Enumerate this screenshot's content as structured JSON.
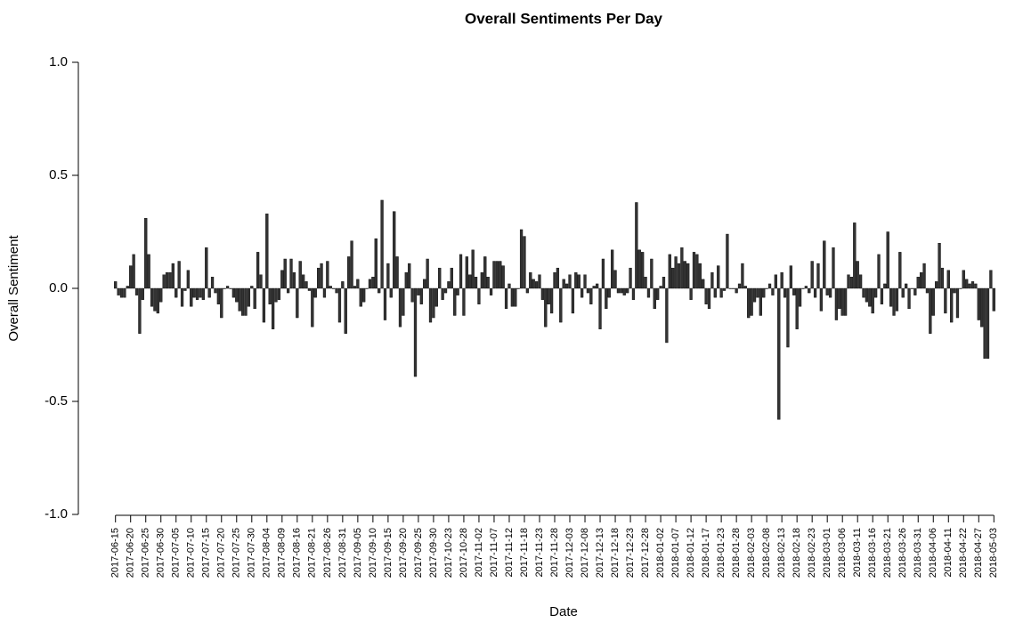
{
  "chart_data": {
    "type": "bar",
    "title": "Overall Sentiments Per Day",
    "x_label": "Date",
    "y_label": "Overall Sentiment",
    "color": "#333333",
    "ylim": [
      -1,
      1
    ],
    "yticks": [
      {
        "value": -1,
        "label": "-1.0"
      },
      -0.5,
      {
        "value": 0,
        "label": "0.0"
      },
      0.5,
      {
        "value": 1,
        "label": "1.0"
      }
    ],
    "categories": [
      "2017-06-15",
      null,
      null,
      null,
      null,
      "2017-06-20",
      null,
      null,
      null,
      null,
      "2017-06-25",
      null,
      null,
      null,
      null,
      "2017-06-30",
      null,
      null,
      null,
      null,
      "2017-07-05",
      null,
      null,
      null,
      null,
      "2017-07-10",
      null,
      null,
      null,
      null,
      "2017-07-15",
      null,
      null,
      null,
      null,
      "2017-07-20",
      null,
      null,
      null,
      null,
      "2017-07-25",
      null,
      null,
      null,
      null,
      "2017-07-30",
      null,
      null,
      null,
      null,
      "2017-08-04",
      null,
      null,
      null,
      null,
      "2017-08-09",
      null,
      null,
      null,
      null,
      "2017-08-16",
      null,
      null,
      null,
      null,
      "2017-08-21",
      null,
      null,
      null,
      null,
      "2017-08-26",
      null,
      null,
      null,
      null,
      "2017-08-31",
      null,
      null,
      null,
      null,
      "2017-09-05",
      null,
      null,
      null,
      null,
      "2017-09-10",
      null,
      null,
      null,
      null,
      "2017-09-15",
      null,
      null,
      null,
      null,
      "2017-09-20",
      null,
      null,
      null,
      null,
      "2017-09-25",
      null,
      null,
      null,
      null,
      "2017-09-30",
      null,
      null,
      null,
      null,
      "2017-10-23",
      null,
      null,
      null,
      null,
      "2017-10-28",
      null,
      null,
      null,
      null,
      "2017-11-02",
      null,
      null,
      null,
      null,
      "2017-11-07",
      null,
      null,
      null,
      null,
      "2017-11-12",
      null,
      null,
      null,
      null,
      "2017-11-18",
      null,
      null,
      null,
      null,
      "2017-11-23",
      null,
      null,
      null,
      null,
      "2017-11-28",
      null,
      null,
      null,
      null,
      "2017-12-03",
      null,
      null,
      null,
      null,
      "2017-12-08",
      null,
      null,
      null,
      null,
      "2017-12-13",
      null,
      null,
      null,
      null,
      "2017-12-18",
      null,
      null,
      null,
      null,
      "2017-12-23",
      null,
      null,
      null,
      null,
      "2017-12-28",
      null,
      null,
      null,
      null,
      "2018-01-02",
      null,
      null,
      null,
      null,
      "2018-01-07",
      null,
      null,
      null,
      null,
      "2018-01-12",
      null,
      null,
      null,
      null,
      "2018-01-17",
      null,
      null,
      null,
      null,
      "2018-01-23",
      null,
      null,
      null,
      null,
      "2018-01-28",
      null,
      null,
      null,
      null,
      "2018-02-03",
      null,
      null,
      null,
      null,
      "2018-02-08",
      null,
      null,
      null,
      null,
      "2018-02-13",
      null,
      null,
      null,
      null,
      "2018-02-18",
      null,
      null,
      null,
      null,
      "2018-02-23",
      null,
      null,
      null,
      null,
      "2018-03-01",
      null,
      null,
      null,
      null,
      "2018-03-06",
      null,
      null,
      null,
      null,
      "2018-03-11",
      null,
      null,
      null,
      null,
      "2018-03-16",
      null,
      null,
      null,
      null,
      "2018-03-21",
      null,
      null,
      null,
      null,
      "2018-03-26",
      null,
      null,
      null,
      null,
      "2018-03-31",
      null,
      null,
      null,
      null,
      "2018-04-06",
      null,
      null,
      null,
      null,
      "2018-04-11",
      null,
      null,
      null,
      null,
      "2018-04-22",
      null,
      null,
      null,
      null,
      "2018-04-27",
      null,
      null,
      null,
      null,
      "2018-05-03"
    ],
    "values": [
      0.03,
      -0.03,
      -0.04,
      -0.04,
      0.01,
      0.1,
      0.15,
      -0.03,
      -0.2,
      -0.05,
      0.31,
      0.15,
      -0.08,
      -0.1,
      -0.11,
      -0.06,
      0.06,
      0.07,
      0.07,
      0.11,
      -0.04,
      0.12,
      -0.08,
      -0.01,
      0.08,
      -0.08,
      -0.04,
      -0.05,
      -0.04,
      -0.05,
      0.18,
      -0.04,
      0.05,
      -0.02,
      -0.07,
      -0.13,
      0.0,
      0.01,
      0.0,
      -0.04,
      -0.06,
      -0.1,
      -0.12,
      -0.12,
      -0.08,
      0.01,
      -0.09,
      0.16,
      0.06,
      -0.15,
      0.33,
      -0.07,
      -0.18,
      -0.06,
      -0.05,
      0.08,
      0.13,
      -0.02,
      0.13,
      0.07,
      -0.13,
      0.12,
      0.06,
      0.03,
      -0.01,
      -0.17,
      -0.04,
      0.09,
      0.11,
      -0.04,
      0.12,
      0.01,
      0.0,
      -0.02,
      -0.15,
      0.03,
      -0.2,
      0.14,
      0.21,
      0.01,
      0.04,
      -0.08,
      -0.06,
      0.0,
      0.04,
      0.05,
      0.22,
      -0.02,
      0.39,
      -0.14,
      0.11,
      -0.04,
      0.34,
      0.14,
      -0.17,
      -0.12,
      0.07,
      0.11,
      -0.06,
      -0.39,
      -0.03,
      -0.07,
      0.04,
      0.13,
      -0.15,
      -0.13,
      -0.08,
      0.09,
      -0.05,
      -0.02,
      0.03,
      0.09,
      -0.12,
      -0.03,
      0.15,
      -0.12,
      0.14,
      0.06,
      0.17,
      0.05,
      -0.07,
      0.07,
      0.14,
      0.05,
      -0.03,
      0.12,
      0.12,
      0.12,
      0.1,
      -0.09,
      0.02,
      -0.08,
      -0.08,
      0.0,
      0.26,
      0.23,
      -0.02,
      0.07,
      0.04,
      0.03,
      0.06,
      -0.05,
      -0.17,
      -0.07,
      -0.11,
      0.07,
      0.09,
      -0.15,
      0.04,
      0.02,
      0.06,
      -0.11,
      0.07,
      0.06,
      -0.04,
      0.06,
      -0.02,
      -0.07,
      0.01,
      0.02,
      -0.18,
      0.13,
      -0.09,
      -0.04,
      0.17,
      0.08,
      -0.02,
      -0.02,
      -0.03,
      -0.02,
      0.09,
      -0.05,
      0.38,
      0.17,
      0.16,
      0.05,
      -0.04,
      0.13,
      -0.09,
      -0.05,
      0.01,
      0.05,
      -0.24,
      0.15,
      0.09,
      0.14,
      0.11,
      0.18,
      0.12,
      0.11,
      -0.05,
      0.16,
      0.15,
      0.11,
      0.04,
      -0.07,
      -0.09,
      0.07,
      -0.04,
      0.1,
      -0.04,
      -0.01,
      0.24,
      0.0,
      0.0,
      -0.02,
      0.02,
      0.11,
      0.01,
      -0.13,
      -0.12,
      -0.06,
      -0.04,
      -0.12,
      -0.04,
      0.0,
      0.02,
      -0.03,
      0.06,
      -0.58,
      0.07,
      -0.04,
      -0.26,
      0.1,
      -0.03,
      -0.18,
      -0.08,
      0.0,
      0.01,
      -0.02,
      0.12,
      -0.04,
      0.11,
      -0.1,
      0.21,
      -0.03,
      -0.04,
      0.18,
      -0.14,
      -0.09,
      -0.12,
      -0.12,
      0.06,
      0.05,
      0.29,
      0.12,
      0.06,
      -0.04,
      -0.06,
      -0.08,
      -0.11,
      -0.04,
      0.15,
      -0.07,
      0.02,
      0.25,
      -0.08,
      -0.12,
      -0.1,
      0.16,
      -0.04,
      0.02,
      -0.09,
      0.0,
      -0.03,
      0.05,
      0.07,
      0.11,
      -0.02,
      -0.2,
      -0.12,
      0.03,
      0.2,
      0.09,
      -0.11,
      0.08,
      -0.15,
      -0.02,
      -0.13,
      0.0,
      0.08,
      0.04,
      0.02,
      0.03,
      0.02,
      -0.14,
      -0.17,
      -0.31,
      -0.31,
      0.08,
      -0.1
    ]
  }
}
